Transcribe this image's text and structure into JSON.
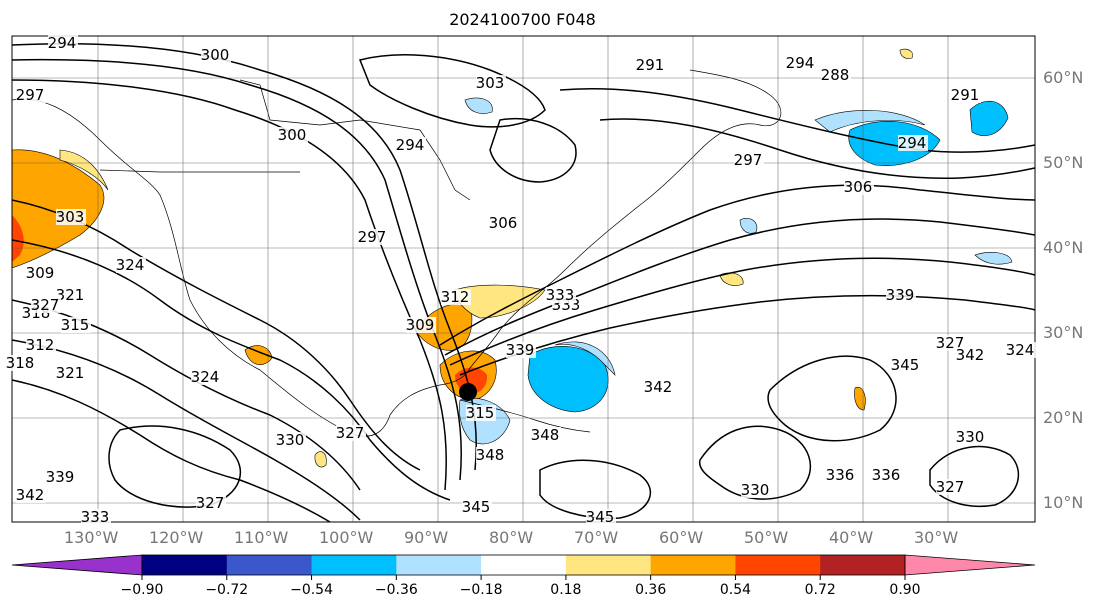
{
  "title": "2024100700 F048",
  "map": {
    "lon_range": [
      -140,
      -20
    ],
    "lat_range": [
      7,
      65
    ],
    "lat_labels": [
      "60°N",
      "50°N",
      "40°N",
      "30°N",
      "20°N",
      "10°N"
    ],
    "lon_labels": [
      "130°W",
      "120°W",
      "110°W",
      "100°W",
      "90°W",
      "80°W",
      "70°W",
      "60°W",
      "50°W",
      "40°W",
      "30°W"
    ],
    "contour_color": "#000000",
    "contour_labels": [
      "294",
      "300",
      "297",
      "303",
      "291",
      "294",
      "288",
      "291",
      "294",
      "297",
      "306",
      "303",
      "294",
      "300",
      "306",
      "297",
      "309",
      "321",
      "324",
      "318",
      "327",
      "315",
      "312",
      "318",
      "321",
      "324",
      "312",
      "309",
      "333",
      "342",
      "336",
      "330",
      "327",
      "315",
      "339",
      "342",
      "333",
      "327",
      "345",
      "348",
      "345",
      "348",
      "339",
      "330",
      "336",
      "345",
      "327",
      "342",
      "339",
      "330",
      "327",
      "333",
      "324"
    ],
    "hurricane_marker": "filled-circle"
  },
  "colorbar": {
    "ticks": [
      "−0.90",
      "−0.72",
      "−0.54",
      "−0.36",
      "−0.18",
      "0.18",
      "0.36",
      "0.54",
      "0.72",
      "0.90"
    ],
    "colors": [
      "#9932cc",
      "#000080",
      "#3a58cc",
      "#00bfff",
      "#b0e2ff",
      "#ffffff",
      "#ffe680",
      "#ffa500",
      "#ff4500",
      "#b22222",
      "#ff88aa"
    ],
    "extend": "both"
  }
}
